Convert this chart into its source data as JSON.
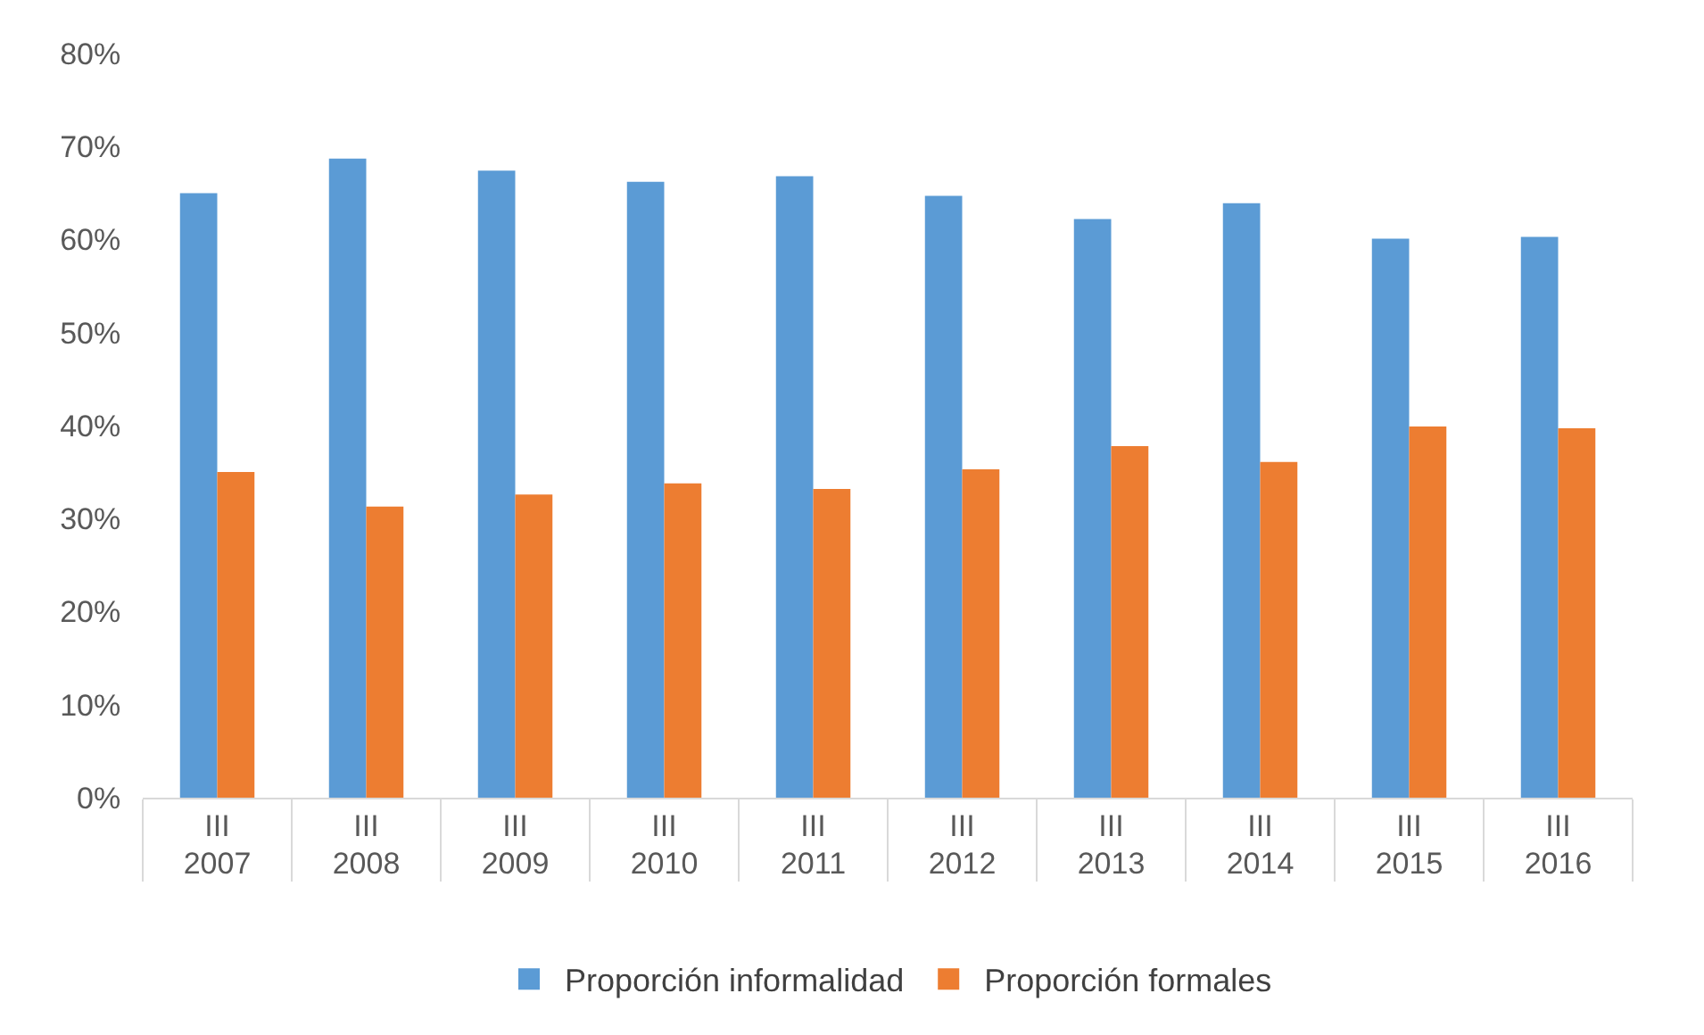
{
  "chart_data": {
    "type": "bar",
    "categories": [
      "III\n2007",
      "III\n2008",
      "III\n2009",
      "III\n2010",
      "III\n2011",
      "III\n2012",
      "III\n2013",
      "III\n2014",
      "III\n2015",
      "III\n2016"
    ],
    "series": [
      {
        "name": "Proporción informalidad",
        "color": "#5b9bd5",
        "values": [
          65,
          68.7,
          67.4,
          66.2,
          66.8,
          64.7,
          62.2,
          63.9,
          60.1,
          60.3
        ]
      },
      {
        "name": "Proporción formales",
        "color": "#ed7d31",
        "values": [
          35,
          31.3,
          32.6,
          33.8,
          33.2,
          35.3,
          37.8,
          36.1,
          39.9,
          39.7
        ]
      }
    ],
    "ylim": [
      0,
      80
    ],
    "yticks": [
      {
        "value": 0,
        "label": "0%"
      },
      {
        "value": 10,
        "label": "10%"
      },
      {
        "value": 20,
        "label": "20%"
      },
      {
        "value": 30,
        "label": "30%"
      },
      {
        "value": 40,
        "label": "40%"
      },
      {
        "value": 50,
        "label": "50%"
      },
      {
        "value": 60,
        "label": "60%"
      },
      {
        "value": 70,
        "label": "70%"
      },
      {
        "value": 80,
        "label": "80%"
      }
    ],
    "grid": false,
    "legend": "bottom"
  }
}
